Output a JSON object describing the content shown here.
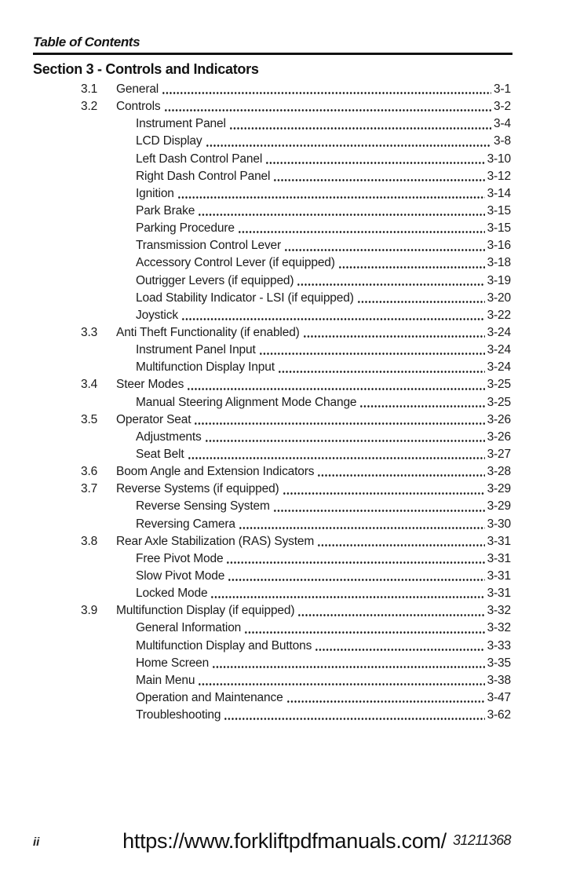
{
  "header": {
    "title": "Table of Contents",
    "section": "Section 3 - Controls and Indicators"
  },
  "toc": {
    "entries": [
      {
        "num": "3.1",
        "title": "General",
        "page": "3-1",
        "level": 1
      },
      {
        "num": "3.2",
        "title": "Controls",
        "page": "3-2",
        "level": 1
      },
      {
        "num": "",
        "title": "Instrument Panel",
        "page": "3-4",
        "level": 2
      },
      {
        "num": "",
        "title": "LCD Display",
        "page": "3-8",
        "level": 2
      },
      {
        "num": "",
        "title": "Left Dash Control Panel",
        "page": "3-10",
        "level": 2
      },
      {
        "num": "",
        "title": "Right Dash Control Panel",
        "page": "3-12",
        "level": 2
      },
      {
        "num": "",
        "title": "Ignition",
        "page": "3-14",
        "level": 2
      },
      {
        "num": "",
        "title": "Park Brake",
        "page": "3-15",
        "level": 2
      },
      {
        "num": "",
        "title": "Parking Procedure",
        "page": "3-15",
        "level": 2
      },
      {
        "num": "",
        "title": "Transmission Control Lever",
        "page": "3-16",
        "level": 2
      },
      {
        "num": "",
        "title": "Accessory Control Lever (if equipped)",
        "page": "3-18",
        "level": 2
      },
      {
        "num": "",
        "title": "Outrigger Levers (if equipped)",
        "page": "3-19",
        "level": 2
      },
      {
        "num": "",
        "title": "Load Stability Indicator - LSI (if equipped)",
        "page": "3-20",
        "level": 2
      },
      {
        "num": "",
        "title": "Joystick",
        "page": "3-22",
        "level": 2
      },
      {
        "num": "3.3",
        "title": "Anti Theft Functionality (if enabled)",
        "page": "3-24",
        "level": 1
      },
      {
        "num": "",
        "title": "Instrument Panel Input",
        "page": "3-24",
        "level": 2
      },
      {
        "num": "",
        "title": "Multifunction Display Input",
        "page": "3-24",
        "level": 2
      },
      {
        "num": "3.4",
        "title": "Steer Modes",
        "page": "3-25",
        "level": 1
      },
      {
        "num": "",
        "title": "Manual Steering Alignment Mode Change",
        "page": "3-25",
        "level": 2
      },
      {
        "num": "3.5",
        "title": "Operator Seat",
        "page": "3-26",
        "level": 1
      },
      {
        "num": "",
        "title": "Adjustments",
        "page": "3-26",
        "level": 2
      },
      {
        "num": "",
        "title": "Seat Belt",
        "page": "3-27",
        "level": 2
      },
      {
        "num": "3.6",
        "title": "Boom Angle and Extension Indicators",
        "page": "3-28",
        "level": 1
      },
      {
        "num": "3.7",
        "title": "Reverse Systems (if equipped)",
        "page": "3-29",
        "level": 1
      },
      {
        "num": "",
        "title": "Reverse Sensing System",
        "page": "3-29",
        "level": 2
      },
      {
        "num": "",
        "title": "Reversing Camera",
        "page": "3-30",
        "level": 2
      },
      {
        "num": "3.8",
        "title": "Rear Axle Stabilization (RAS) System",
        "page": "3-31",
        "level": 1
      },
      {
        "num": "",
        "title": "Free Pivot Mode",
        "page": "3-31",
        "level": 2
      },
      {
        "num": "",
        "title": "Slow Pivot Mode",
        "page": "3-31",
        "level": 2
      },
      {
        "num": "",
        "title": "Locked Mode",
        "page": "3-31",
        "level": 2
      },
      {
        "num": "3.9",
        "title": "Multifunction Display (if equipped)",
        "page": "3-32",
        "level": 1
      },
      {
        "num": "",
        "title": "General Information",
        "page": "3-32",
        "level": 2
      },
      {
        "num": "",
        "title": "Multifunction Display and Buttons",
        "page": "3-33",
        "level": 2
      },
      {
        "num": "",
        "title": "Home Screen",
        "page": "3-35",
        "level": 2
      },
      {
        "num": "",
        "title": "Main Menu",
        "page": "3-38",
        "level": 2
      },
      {
        "num": "",
        "title": "Operation and Maintenance",
        "page": "3-47",
        "level": 2
      },
      {
        "num": "",
        "title": "Troubleshooting",
        "page": "3-62",
        "level": 2
      }
    ]
  },
  "footer": {
    "page_number": "ii",
    "url": "https://www.forkliftpdfmanuals.com/",
    "doc_number": "31211368"
  },
  "colors": {
    "text": "#191919",
    "rule": "#121212",
    "background": "#ffffff"
  }
}
